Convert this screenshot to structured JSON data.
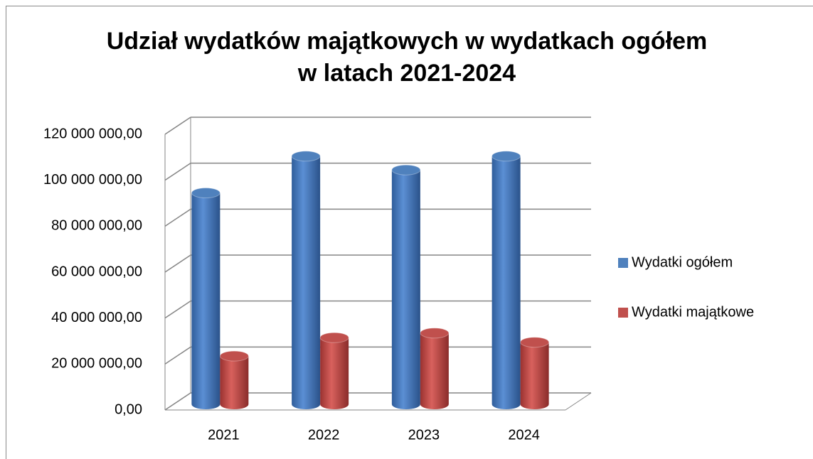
{
  "chart_data": {
    "type": "bar3d",
    "title": "Udział wydatków majątkowych w wydatkach ogółem",
    "subtitle": "w latach 2021-2024",
    "categories": [
      "2021",
      "2022",
      "2023",
      "2024"
    ],
    "series": [
      {
        "name": "Wydatki ogółem",
        "color": "#4f81bd",
        "values": [
          92000000,
          108000000,
          102000000,
          108000000
        ]
      },
      {
        "name": "Wydatki majątkowe",
        "color": "#c0504d",
        "values": [
          21000000,
          29000000,
          31000000,
          27000000
        ]
      }
    ],
    "ylim": [
      0,
      120000000
    ],
    "yticks": [
      {
        "value": 0,
        "label": "0,00"
      },
      {
        "value": 20000000,
        "label": "20 000 000,00"
      },
      {
        "value": 40000000,
        "label": "40 000 000,00"
      },
      {
        "value": 60000000,
        "label": "60 000 000,00"
      },
      {
        "value": 80000000,
        "label": "80 000 000,00"
      },
      {
        "value": 100000000,
        "label": "100 000 000,00"
      },
      {
        "value": 120000000,
        "label": "120 000 000,00"
      }
    ],
    "grid": true,
    "legend": "right"
  }
}
